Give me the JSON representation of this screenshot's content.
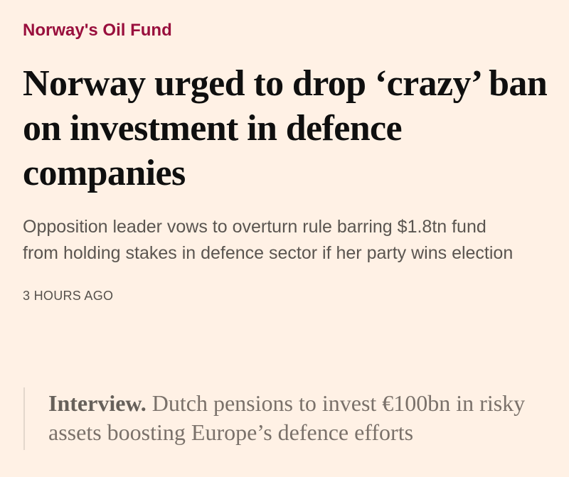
{
  "article": {
    "topic": "Norway's Oil Fund",
    "headline": "Norway urged to drop ‘crazy’ ban on investment in defence companies",
    "standfirst": "Opposition leader vows to overturn rule barring $1.8tn fund from holding stakes in defence sector if her party wins election",
    "timestamp": "3 HOURS AGO"
  },
  "related": {
    "label": "Interview.",
    "title": "Dutch pensions to invest €100bn in risky assets boosting Europe’s defence efforts"
  },
  "colors": {
    "background": "#FFF1E5",
    "topic": "#990F3D",
    "headline": "#0f0f0f",
    "standfirst": "#5a5550",
    "related_text": "#7a716a",
    "related_rule": "#e3d7cc"
  }
}
